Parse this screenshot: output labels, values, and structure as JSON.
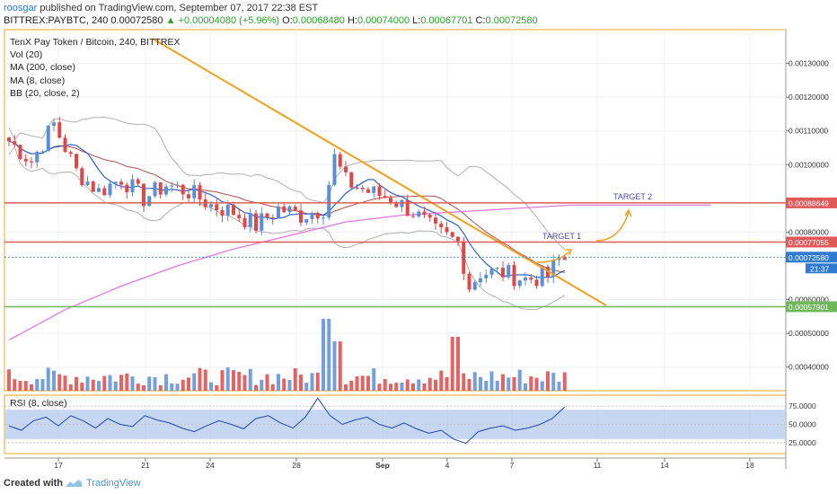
{
  "header": {
    "author": "roosgar",
    "published_text": "published on TradingView.com, September 07, 2017 22:38 EST",
    "symbol_info": "BITTREX:PAYBTC, 240",
    "last": "0.00072580",
    "change": "+0.00004080 (+5.96%)",
    "o_label": "O:",
    "o": "0.00068480",
    "h_label": "H:",
    "h": "0.00074000",
    "l_label": "L:",
    "l": "0.00067701",
    "c_label": "C:",
    "c": "0.00072580"
  },
  "legend": {
    "title": "TenX Pay Token / Bitcoin, 240, BITTREX",
    "items": [
      "Vol (20)",
      "MA (200, close)",
      "MA (8, close)",
      "BB (20, close, 2)"
    ]
  },
  "rsi": {
    "label": "RSI (8, close)"
  },
  "footer": {
    "created": "Created with",
    "brand": "TradingView"
  },
  "chart_data": [
    {
      "type": "candlestick",
      "title": "TenX Pay Token / Bitcoin, 240, BITTREX",
      "x_ticks": [
        "17",
        "21",
        "24",
        "28",
        "Sep",
        "4",
        "7",
        "11",
        "14",
        "18"
      ],
      "y_ticks": [
        "0.00130000",
        "0.00120000",
        "0.00110000",
        "0.00100000",
        "0.00080000",
        "0.00060000",
        "0.00050000",
        "0.00040000"
      ],
      "ylim": [
        0.00033,
        0.0014
      ],
      "close_path": [
        {
          "x": 0,
          "y": 0.00107
        },
        {
          "x": 4,
          "y": 0.00101
        },
        {
          "x": 8,
          "y": 0.00112
        },
        {
          "x": 12,
          "y": 0.00098
        },
        {
          "x": 16,
          "y": 0.00092
        },
        {
          "x": 20,
          "y": 0.00096
        },
        {
          "x": 24,
          "y": 0.0009
        },
        {
          "x": 28,
          "y": 0.00094
        },
        {
          "x": 32,
          "y": 0.00092
        },
        {
          "x": 36,
          "y": 0.00088
        },
        {
          "x": 40,
          "y": 0.00086
        },
        {
          "x": 44,
          "y": 0.00082
        },
        {
          "x": 48,
          "y": 0.00087
        },
        {
          "x": 52,
          "y": 0.00085
        },
        {
          "x": 56,
          "y": 0.00087
        },
        {
          "x": 58,
          "y": 0.00102
        },
        {
          "x": 60,
          "y": 0.00095
        },
        {
          "x": 64,
          "y": 0.00092
        },
        {
          "x": 68,
          "y": 0.0009
        },
        {
          "x": 72,
          "y": 0.00086
        },
        {
          "x": 76,
          "y": 0.0008
        },
        {
          "x": 80,
          "y": 0.00077
        },
        {
          "x": 82,
          "y": 0.00064
        },
        {
          "x": 84,
          "y": 0.00068
        },
        {
          "x": 88,
          "y": 0.00068
        },
        {
          "x": 92,
          "y": 0.00066
        },
        {
          "x": 96,
          "y": 0.00067
        },
        {
          "x": 98,
          "y": 0.00072
        }
      ],
      "ma200": [
        {
          "x": 0,
          "y": 0.00048
        },
        {
          "x": 10,
          "y": 0.00057
        },
        {
          "x": 20,
          "y": 0.00064
        },
        {
          "x": 30,
          "y": 0.0007
        },
        {
          "x": 40,
          "y": 0.00075
        },
        {
          "x": 50,
          "y": 0.00079
        },
        {
          "x": 60,
          "y": 0.00083
        },
        {
          "x": 70,
          "y": 0.00085
        },
        {
          "x": 80,
          "y": 0.00086
        },
        {
          "x": 90,
          "y": 0.00087
        },
        {
          "x": 100,
          "y": 0.00088
        },
        {
          "x": 125,
          "y": 0.00088
        }
      ],
      "levels": [
        {
          "label": "0.00088649",
          "value": 0.00088649,
          "color": "#e05a5a"
        },
        {
          "label": "0.00077055",
          "value": 0.00077055,
          "color": "#e05a5a"
        },
        {
          "label": "0.00072580",
          "value": 0.0007258,
          "color": "#2e7bcf"
        },
        {
          "label": "0.00057901",
          "value": 0.00057901,
          "color": "#6fb85a"
        }
      ],
      "countdown": "21:37",
      "annotations": [
        "TARGET 1",
        "TARGET 2"
      ],
      "colors": {
        "up": "#5a8fd6",
        "down": "#e04848",
        "ma200": "#e07ae0",
        "trendline": "#f0a020",
        "bb": "#b0b0b0"
      }
    },
    {
      "type": "line",
      "title": "RSI (8, close)",
      "y_ticks": [
        "75.0000",
        "50.0000",
        "25.0000"
      ],
      "ylim": [
        10,
        90
      ],
      "series": [
        {
          "values": [
            48,
            42,
            55,
            60,
            48,
            62,
            55,
            45,
            58,
            50,
            47,
            62,
            56,
            52,
            45,
            40,
            48,
            55,
            50,
            44,
            58,
            62,
            52,
            45,
            60,
            86,
            62,
            50,
            56,
            60,
            50,
            45,
            52,
            44,
            38,
            42,
            30,
            24,
            40,
            45,
            48,
            42,
            45,
            50,
            58,
            74
          ]
        }
      ]
    }
  ]
}
